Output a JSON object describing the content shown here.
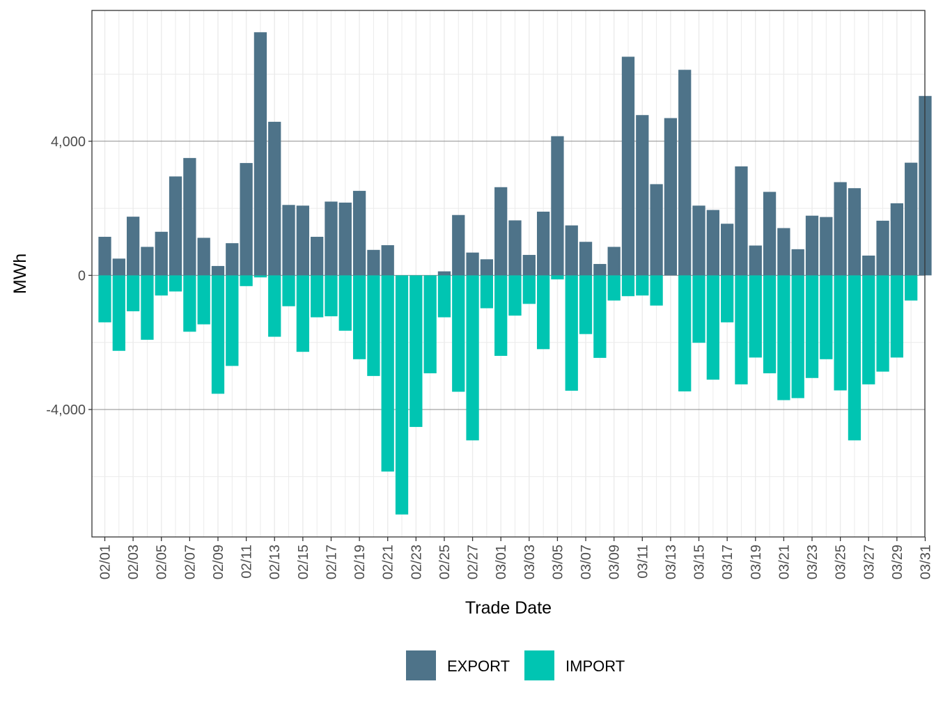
{
  "chart_data": {
    "type": "bar",
    "stacked": "diverging",
    "xlabel": "Trade Date",
    "ylabel": "MWh",
    "ylim": [
      -7800,
      7900
    ],
    "yticks": [
      -4000,
      0,
      4000
    ],
    "ytick_labels": [
      "-4,000",
      "0",
      "4,000"
    ],
    "ytick_minor": [
      -6000,
      -2000,
      2000,
      6000
    ],
    "grid": true,
    "legend_position": "bottom",
    "categories": [
      "02/01",
      "02/02",
      "02/03",
      "02/04",
      "02/05",
      "02/06",
      "02/07",
      "02/08",
      "02/09",
      "02/10",
      "02/11",
      "02/12",
      "02/13",
      "02/14",
      "02/15",
      "02/16",
      "02/17",
      "02/18",
      "02/19",
      "02/20",
      "02/21",
      "02/22",
      "02/23",
      "02/24",
      "02/25",
      "02/26",
      "02/27",
      "02/28",
      "03/01",
      "03/02",
      "03/03",
      "03/04",
      "03/05",
      "03/06",
      "03/07",
      "03/08",
      "03/09",
      "03/10",
      "03/11",
      "03/12",
      "03/13",
      "03/14",
      "03/15",
      "03/16",
      "03/17",
      "03/18",
      "03/19",
      "03/20",
      "03/21",
      "03/22",
      "03/23",
      "03/24",
      "03/25",
      "03/26",
      "03/27",
      "03/28",
      "03/29",
      "03/30",
      "03/31"
    ],
    "xtick_labels": [
      "02/01",
      "02/03",
      "02/05",
      "02/07",
      "02/09",
      "02/11",
      "02/13",
      "02/15",
      "02/17",
      "02/19",
      "02/21",
      "02/23",
      "02/25",
      "02/27",
      "03/01",
      "03/03",
      "03/05",
      "03/07",
      "03/09",
      "03/11",
      "03/13",
      "03/15",
      "03/17",
      "03/19",
      "03/21",
      "03/23",
      "03/25",
      "03/27",
      "03/29",
      "03/31"
    ],
    "series": [
      {
        "name": "EXPORT",
        "color": "#4e7389",
        "values": [
          1150,
          500,
          1750,
          850,
          1300,
          2950,
          3500,
          1120,
          280,
          960,
          3350,
          7250,
          4580,
          2100,
          2080,
          1150,
          2200,
          2170,
          2520,
          760,
          900,
          0,
          0,
          0,
          120,
          1800,
          680,
          480,
          2630,
          1640,
          610,
          1900,
          4150,
          1490,
          1000,
          340,
          850,
          6520,
          4780,
          2720,
          4690,
          6130,
          2080,
          1950,
          1540,
          3250,
          890,
          2490,
          1410,
          780,
          1780,
          1740,
          2780,
          2600,
          590,
          1630,
          2150,
          3360,
          5350
        ]
      },
      {
        "name": "IMPORT",
        "color": "#00c5b2",
        "values": [
          -1400,
          -2250,
          -1070,
          -1920,
          -600,
          -480,
          -1680,
          -1460,
          -3530,
          -2700,
          -320,
          -60,
          -1830,
          -920,
          -2280,
          -1250,
          -1220,
          -1650,
          -2500,
          -3000,
          -5850,
          -7130,
          -4520,
          -2920,
          -1250,
          -3470,
          -4920,
          -980,
          -2400,
          -1200,
          -850,
          -2200,
          -120,
          -3440,
          -1750,
          -2460,
          -750,
          -620,
          -600,
          -900,
          0,
          -3460,
          -2010,
          -3110,
          -1400,
          -3250,
          -2450,
          -2920,
          -3720,
          -3660,
          -3060,
          -2500,
          -3430,
          -4920,
          -3250,
          -2870,
          -2450,
          -750,
          0
        ]
      }
    ]
  }
}
